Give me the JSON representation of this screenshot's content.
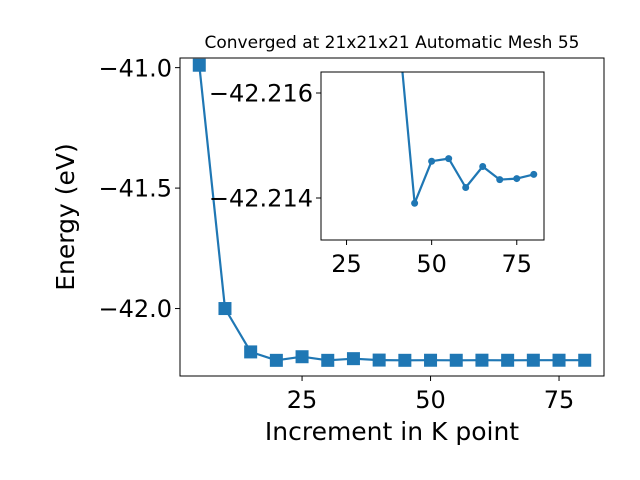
{
  "chart_data": [
    {
      "type": "line",
      "title": "Converged at 21x21x21 Automatic Mesh 55",
      "xlabel": "Increment in K point",
      "ylabel": "Energy (eV)",
      "xlim": [
        1.25,
        83.75
      ],
      "ylim": [
        -42.28,
        -40.96
      ],
      "xticks": [
        25,
        50,
        75
      ],
      "xtick_labels": [
        "25",
        "50",
        "75"
      ],
      "yticks": [
        -41.0,
        -41.5,
        -42.0
      ],
      "ytick_labels": [
        "−41.0",
        "−41.5",
        "−42.0"
      ],
      "marker": "square",
      "color": "#1f77b4",
      "x": [
        5,
        10,
        15,
        20,
        25,
        30,
        35,
        40,
        45,
        50,
        55,
        60,
        65,
        70,
        75,
        80
      ],
      "y": [
        -40.99,
        -42.0,
        -42.18,
        -42.215,
        -42.2,
        -42.215,
        -42.208,
        -42.2139,
        -42.2149,
        -42.2146,
        -42.2147,
        -42.2144,
        -42.2147,
        -42.2145,
        -42.2145,
        -42.2146
      ],
      "grid": false
    },
    {
      "type": "line",
      "title": "",
      "xlabel": "",
      "ylabel": "",
      "xlim": [
        17.5,
        83
      ],
      "ylim": [
        -42.2132,
        -42.2164
      ],
      "xticks": [
        25,
        50,
        75
      ],
      "xtick_labels": [
        "25",
        "50",
        "75"
      ],
      "yticks": [
        -42.216,
        -42.214
      ],
      "ytick_labels": [
        "−42.216",
        "−42.214"
      ],
      "marker": "circle",
      "color": "#1f77b4",
      "x": [
        40,
        45,
        50,
        55,
        60,
        65,
        70,
        75,
        80
      ],
      "y": [
        -42.2174,
        -42.2139,
        -42.2147,
        -42.21475,
        -42.2142,
        -42.2146,
        -42.21435,
        -42.21437,
        -42.21445
      ],
      "grid": false
    }
  ]
}
